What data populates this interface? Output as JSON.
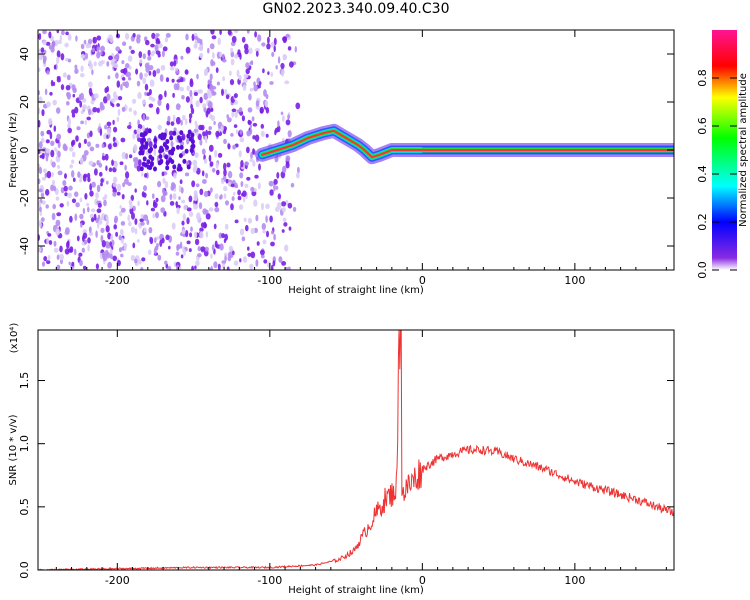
{
  "title": "GN02.2023.340.09.40.C30",
  "chart_data": [
    {
      "type": "heatmap",
      "name": "spectrogram",
      "xlabel": "Height of straight line (km)",
      "ylabel": "Frequency (Hz)",
      "xlim": [
        -252,
        165
      ],
      "ylim": [
        -50,
        50
      ],
      "xticks": [
        -200,
        -100,
        0,
        100
      ],
      "yticks": [
        -40,
        -20,
        0,
        20,
        40
      ],
      "xtick_labels": [
        "-200",
        "-100",
        "0",
        "100"
      ],
      "ytick_labels": [
        "-40",
        "-20",
        "0",
        "20",
        "40"
      ],
      "ridge": {
        "x": [
          -105,
          -95,
          -85,
          -75,
          -65,
          -58,
          -50,
          -42,
          -38,
          -33,
          -28,
          -20,
          -10,
          0,
          10,
          165
        ],
        "freq": [
          -2,
          0,
          2,
          5,
          7,
          8,
          5,
          2,
          0,
          -3,
          -2,
          0,
          0,
          0,
          0,
          0
        ]
      },
      "colorbar": {
        "label": "Normalized spectral amplitude",
        "ticks": [
          0.0,
          0.2,
          0.4,
          0.6,
          0.8
        ],
        "tick_labels": [
          "0.0",
          "0.2",
          "0.4",
          "0.6",
          "0.8"
        ],
        "range": [
          0,
          1
        ]
      }
    },
    {
      "type": "line",
      "name": "snr",
      "xlabel": "Height of straight line (km)",
      "ylabel": "SNR (10 * v/v)",
      "y_multiplier": "(x10⁴)",
      "xlim": [
        -252,
        165
      ],
      "ylim": [
        0,
        1.9
      ],
      "xticks": [
        -200,
        -100,
        0,
        100
      ],
      "yticks": [
        0.0,
        0.5,
        1.0,
        1.5
      ],
      "xtick_labels": [
        "-200",
        "-100",
        "0",
        "100"
      ],
      "ytick_labels": [
        "0.0",
        "0.5",
        "1.0",
        "1.5"
      ],
      "color": "#ee3333",
      "series": [
        {
          "name": "SNR",
          "x": [
            -252,
            -200,
            -150,
            -100,
            -70,
            -55,
            -45,
            -40,
            -35,
            -30,
            -25,
            -20,
            -17,
            -15,
            -14,
            -13,
            -10,
            -5,
            0,
            10,
            20,
            30,
            40,
            50,
            60,
            80,
            100,
            120,
            140,
            165
          ],
          "y": [
            0.0,
            0.01,
            0.02,
            0.02,
            0.04,
            0.08,
            0.15,
            0.25,
            0.35,
            0.45,
            0.55,
            0.6,
            0.65,
            1.9,
            0.7,
            0.6,
            0.65,
            0.72,
            0.8,
            0.88,
            0.92,
            0.95,
            0.95,
            0.93,
            0.88,
            0.8,
            0.7,
            0.63,
            0.56,
            0.45
          ]
        }
      ]
    }
  ]
}
